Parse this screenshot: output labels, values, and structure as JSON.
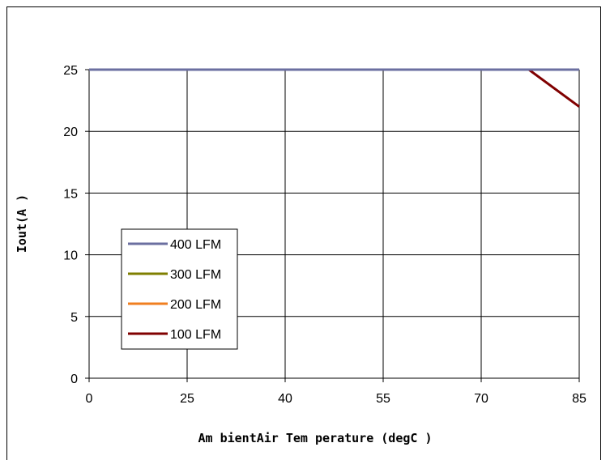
{
  "chart_data": {
    "type": "line",
    "xlabel": "Am bientAir Tem perature (degC )",
    "ylabel": "Iout(A )",
    "x_ticks": [
      "0",
      "25",
      "40",
      "55",
      "70",
      "85"
    ],
    "y_ticks": [
      "0",
      "5",
      "10",
      "15",
      "20",
      "25"
    ],
    "ylim": [
      0,
      25
    ],
    "grid": true,
    "legend_placement": "lower-left",
    "series": [
      {
        "name": "400 LFM",
        "color": "#6B6FA0",
        "points": [
          [
            0,
            25
          ],
          [
            85,
            25
          ]
        ]
      },
      {
        "name": "300 LFM",
        "color": "#7F7F00",
        "points": [
          [
            0,
            25
          ],
          [
            85,
            25
          ]
        ]
      },
      {
        "name": "200 LFM",
        "color": "#F07F20",
        "points": [
          [
            0,
            25
          ],
          [
            85,
            25
          ]
        ]
      },
      {
        "name": "100 LFM",
        "color": "#800000",
        "points": [
          [
            0,
            25
          ],
          [
            77.3,
            25
          ],
          [
            85,
            22
          ]
        ]
      }
    ]
  }
}
